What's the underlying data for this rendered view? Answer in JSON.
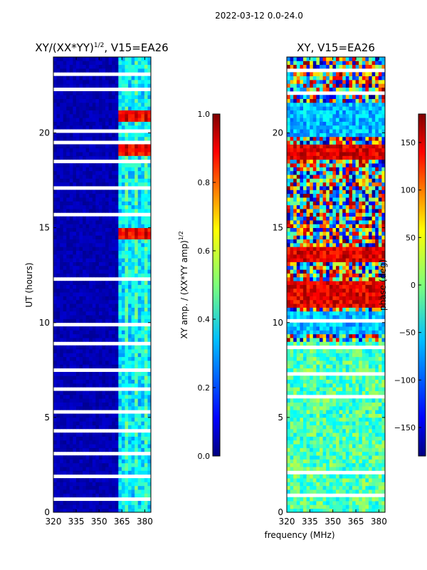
{
  "figure": {
    "suptitle": "2022-03-12 0.0-24.0",
    "shared_xlabel": "frequency (MHz)"
  },
  "chart_data": [
    {
      "type": "heatmap",
      "title_base": "XY/(XX*YY)",
      "title_sup": "1/2",
      "title_tail": ", V15=EA26",
      "xlabel": "",
      "ylabel": "UT (hours)",
      "x_ticks": [
        320,
        335,
        350,
        365,
        380
      ],
      "y_ticks": [
        0,
        5,
        10,
        15,
        20
      ],
      "xlim": [
        320,
        384
      ],
      "ylim": [
        0,
        24
      ],
      "colormap": "jet",
      "colorbar": {
        "label_base": "XY amp. / (XX*YY amp)",
        "label_sup": "1/2",
        "range": [
          0.0,
          1.0
        ],
        "ticks": [
          "0.0",
          "0.2",
          "0.4",
          "0.6",
          "0.8",
          "1.0"
        ],
        "tick_values": [
          0.0,
          0.2,
          0.4,
          0.6,
          0.8,
          1.0
        ]
      },
      "features": {
        "low_band_mhz": [
          320,
          362
        ],
        "high_band_mhz": [
          362,
          384
        ],
        "low_band_value": 0.02,
        "high_band_value": 0.35,
        "bright_hours": [
          [
            14.5,
            15.1
          ],
          [
            18.9,
            19.4
          ],
          [
            20.6,
            21.2
          ]
        ],
        "bright_value": 0.85,
        "flagged_hours": [
          [
            0.7,
            0.9
          ],
          [
            1.8,
            2.0
          ],
          [
            3.1,
            3.2
          ],
          [
            4.3,
            4.5
          ],
          [
            5.2,
            5.4
          ],
          [
            6.5,
            6.6
          ],
          [
            7.4,
            7.6
          ],
          [
            8.9,
            9.0
          ],
          [
            9.9,
            10.1
          ],
          [
            11.4,
            11.5
          ],
          [
            12.3,
            12.4
          ],
          [
            13.2,
            13.3
          ],
          [
            14.0,
            14.1
          ],
          [
            15.6,
            15.8
          ],
          [
            16.6,
            16.7
          ],
          [
            17.0,
            17.3
          ],
          [
            17.8,
            17.9
          ],
          [
            18.5,
            18.7
          ],
          [
            19.5,
            19.7
          ],
          [
            20.1,
            20.2
          ],
          [
            21.6,
            21.7
          ],
          [
            22.3,
            22.4
          ],
          [
            23.0,
            23.2
          ]
        ]
      }
    },
    {
      "type": "heatmap",
      "title": "XY, V15=EA26",
      "xlabel": "frequency (MHz)",
      "ylabel": "",
      "x_ticks": [
        320,
        335,
        350,
        365,
        380
      ],
      "y_ticks": [
        0,
        5,
        10,
        15,
        20
      ],
      "xlim": [
        320,
        384
      ],
      "ylim": [
        0,
        24
      ],
      "colormap": "jet",
      "colorbar": {
        "label": "phase (deg)",
        "range": [
          -180,
          180
        ],
        "ticks": [
          "150",
          "100",
          "50",
          "0",
          "−50",
          "−100",
          "−150"
        ],
        "tick_values": [
          150,
          100,
          50,
          0,
          -50,
          -100,
          -150
        ]
      },
      "features": {
        "noise_hours": [
          [
            0,
            9
          ]
        ],
        "blue_hours": [
          [
            9.4,
            10.6
          ],
          [
            19.8,
            21.6
          ]
        ],
        "red_hours": [
          [
            10.8,
            12.2
          ],
          [
            13.2,
            14.0
          ],
          [
            18.6,
            19.4
          ]
        ],
        "flagged_hours": [
          [
            0.9,
            1.0
          ],
          [
            2.1,
            2.2
          ],
          [
            3.4,
            3.5
          ],
          [
            4.6,
            4.7
          ],
          [
            6.1,
            6.2
          ],
          [
            7.3,
            7.4
          ],
          [
            8.7,
            8.8
          ],
          [
            10.1,
            10.2
          ],
          [
            12.4,
            12.5
          ],
          [
            14.2,
            14.3
          ],
          [
            15.8,
            15.9
          ],
          [
            17.0,
            17.1
          ],
          [
            19.6,
            19.7
          ],
          [
            22.1,
            22.2
          ],
          [
            23.3,
            23.4
          ]
        ]
      }
    }
  ]
}
